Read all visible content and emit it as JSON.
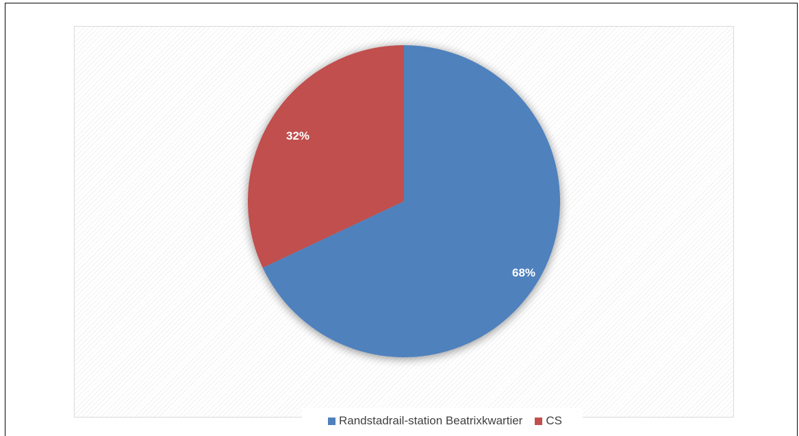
{
  "chart_data": {
    "type": "pie",
    "categories": [
      "Randstadrail-station Beatrixkwartier",
      "CS"
    ],
    "values": [
      68,
      32
    ],
    "labels": [
      "68%",
      "32%"
    ],
    "colors": [
      "#4f81bd",
      "#c0504d"
    ],
    "legend_position": "bottom",
    "title": ""
  }
}
